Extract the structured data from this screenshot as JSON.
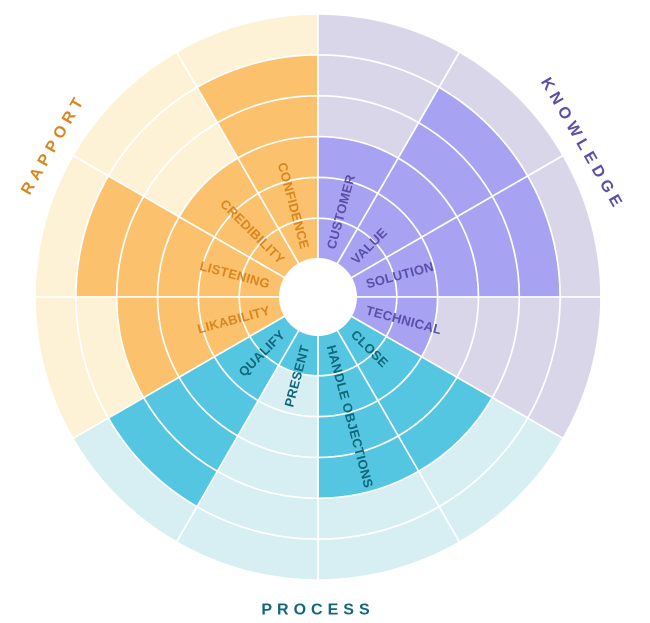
{
  "diagram": {
    "type": "skill-wheel",
    "max_level": 6,
    "groups": [
      {
        "name": "RAPPORT",
        "color_light": "#fdf1d6",
        "color_filled": "#fcc16c",
        "text_color": "#d9861f",
        "segments": [
          {
            "label": "CONFIDENCE",
            "level": 5
          },
          {
            "label": "CREDIBILITY",
            "level": 3
          },
          {
            "label": "LISTENING",
            "level": 5
          },
          {
            "label": "LIKABILITY",
            "level": 4
          }
        ]
      },
      {
        "name": "KNOWLEDGE",
        "color_light": "#d9d6ea",
        "color_filled": "#a8a2f2",
        "text_color": "#5a4ea8",
        "segments": [
          {
            "label": "CUSTOMER",
            "level": 3
          },
          {
            "label": "VALUE",
            "level": 5
          },
          {
            "label": "SOLUTION",
            "level": 5
          },
          {
            "label": "TECHNICAL",
            "level": 2
          }
        ]
      },
      {
        "name": "PROCESS",
        "color_light": "#d7eef2",
        "color_filled": "#55c6e1",
        "text_color": "#10677a",
        "segments": [
          {
            "label": "CLOSE",
            "level": 4
          },
          {
            "label": "HANDLE OBJECTIONS",
            "level": 4
          },
          {
            "label": "PRESENT",
            "level": 1
          },
          {
            "label": "QUALIFY",
            "level": 5
          }
        ]
      }
    ]
  }
}
